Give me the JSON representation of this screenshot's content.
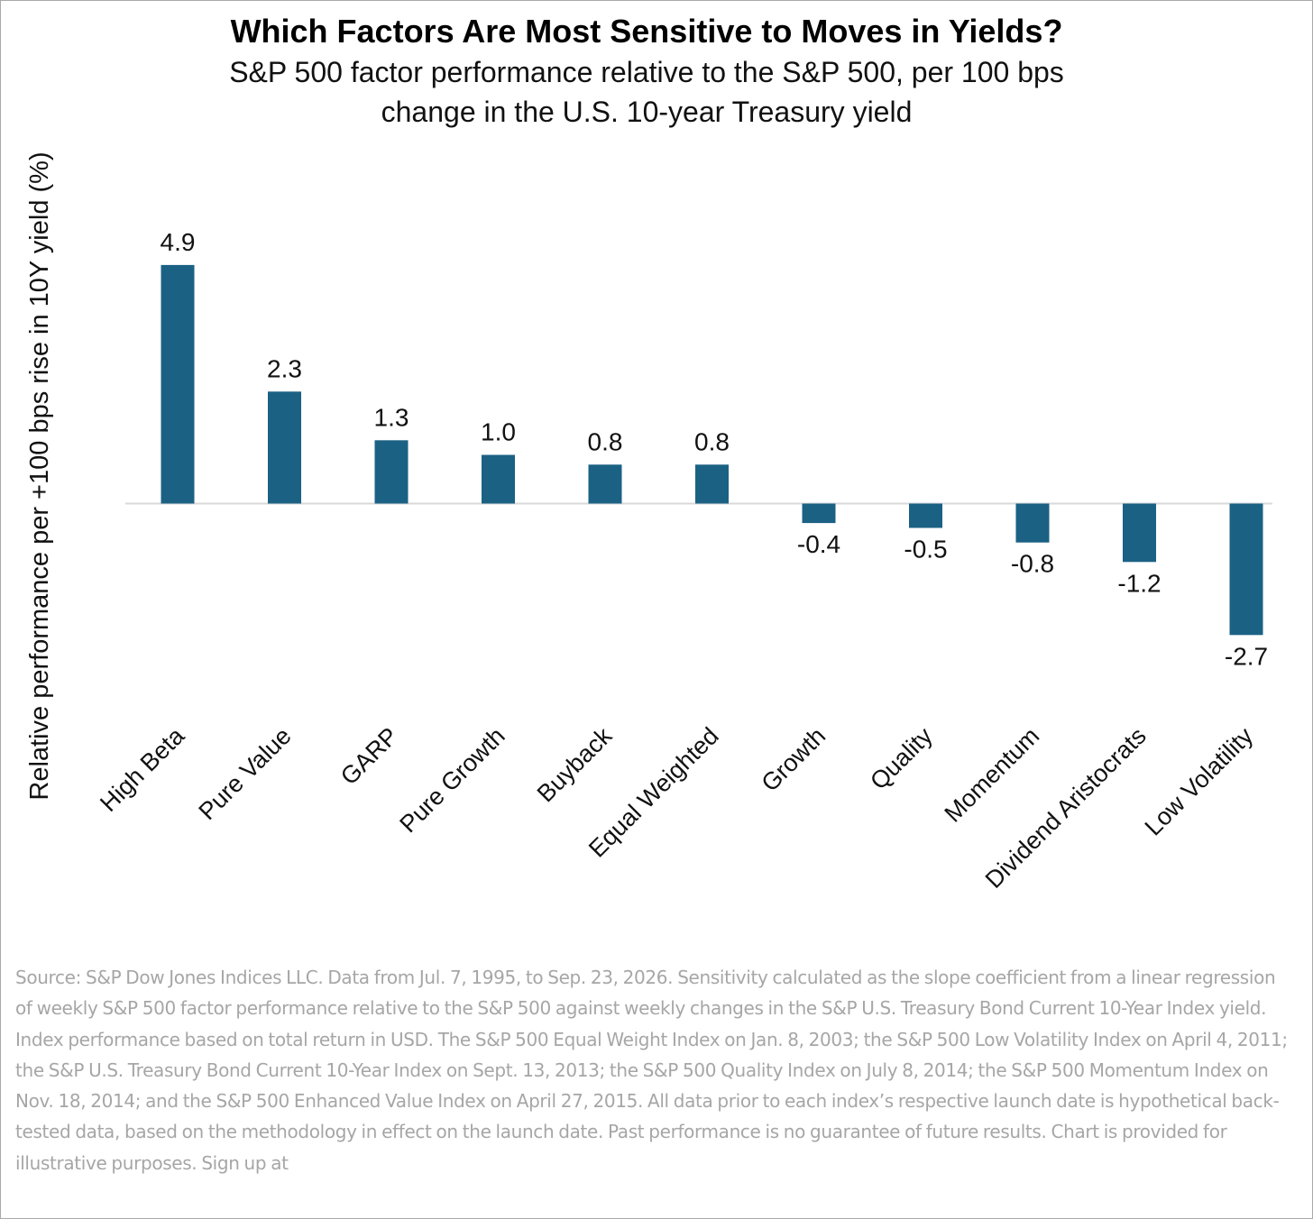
{
  "chart_data": {
    "type": "bar",
    "title": "Which Factors Are Most Sensitive to Moves in Yields?",
    "subtitle_lines": [
      "S&P 500 factor performance relative to the S&P 500, per 100 bps",
      "change in the U.S. 10-year Treasury yield"
    ],
    "ylabel": "Relative performance per +100 bps rise in 10Y yield (%)",
    "xlabel": "",
    "categories": [
      "High Beta",
      "Pure Value",
      "GARP",
      "Pure Growth",
      "Buyback",
      "Equal Weighted",
      "Growth",
      "Quality",
      "Momentum",
      "Dividend Aristocrats",
      "Low Volatility"
    ],
    "values": [
      4.9,
      2.3,
      1.3,
      1.0,
      0.8,
      0.8,
      -0.4,
      -0.5,
      -0.8,
      -1.2,
      -2.7
    ],
    "value_labels": [
      "4.9",
      "2.3",
      "1.3",
      "1.0",
      "0.8",
      "0.8",
      "-0.4",
      "-0.5",
      "-0.8",
      "-1.2",
      "-2.7"
    ],
    "bar_color": "#1b6184",
    "axis_line_color": "#d9d9d9",
    "grid": false,
    "legend": "none",
    "ylim": [
      -3.2,
      5.9
    ]
  },
  "footnote": "Source: S&P Dow Jones Indices LLC. Data from Jul. 7, 1995, to Sep. 23, 2026. Sensitivity calculated as the slope coefficient from a linear regression of weekly S&P 500 factor performance relative to the S&P 500 against weekly changes in the S&P U.S. Treasury Bond Current 10-Year Index yield. Index performance based on total return in USD. The S&P 500 Equal Weight Index on Jan. 8, 2003; the S&P 500 Low Volatility Index on April 4, 2011; the S&P U.S. Treasury Bond Current 10-Year Index on Sept. 13, 2013; the S&P 500 Quality Index on July 8, 2014; the S&P 500 Momentum Index on Nov. 18, 2014; and the S&P 500 Enhanced Value Index on April 27, 2015. All data prior to each index’s respective launch date is hypothetical back-tested data, based on the methodology in effect on the launch date. Past performance is no guarantee of future results. Chart is provided for illustrative purposes. Sign up at"
}
